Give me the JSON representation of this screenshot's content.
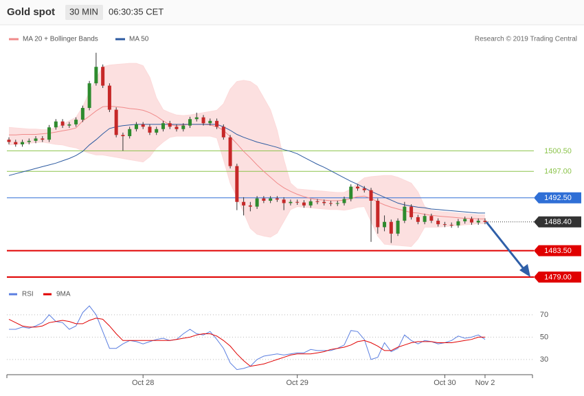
{
  "header": {
    "title": "Gold spot",
    "interval": "30 MIN",
    "time": "06:30:35 CET"
  },
  "source": "Research © 2019 Trading Central",
  "chart_data": [
    {
      "type": "candlestick",
      "categories": [
        null,
        null,
        null,
        null,
        null,
        null,
        null,
        null,
        null,
        null,
        null,
        null,
        null,
        null,
        null,
        null,
        null,
        null,
        null,
        null,
        "Oct 28",
        null,
        null,
        null,
        null,
        null,
        null,
        null,
        null,
        null,
        null,
        null,
        null,
        null,
        null,
        null,
        null,
        null,
        null,
        null,
        null,
        null,
        null,
        "Oct 29",
        null,
        null,
        null,
        null,
        null,
        null,
        null,
        null,
        null,
        null,
        null,
        null,
        null,
        null,
        null,
        null,
        null,
        null,
        null,
        null,
        null,
        "Oct 30",
        null,
        null,
        null,
        null,
        null,
        "Nov 2"
      ],
      "open": [
        1502.4,
        1502.0,
        1501.6,
        1502.0,
        1502.2,
        1502.6,
        1502.4,
        1504.5,
        1505.5,
        1504.8,
        1505.0,
        1505.8,
        1507.8,
        1512.0,
        1514.8,
        1511.6,
        1507.5,
        1503.2,
        1503.0,
        1504.2,
        1505.0,
        1504.6,
        1503.6,
        1504.2,
        1505.2,
        1504.6,
        1504.2,
        1504.8,
        1505.9,
        1506.2,
        1505.2,
        1505.6,
        1504.6,
        1502.8,
        1497.9,
        1491.8,
        1491.2,
        1491.0,
        1492.4,
        1492.0,
        1492.4,
        1492.2,
        1491.6,
        1491.8,
        1491.7,
        1491.2,
        1491.9,
        1491.8,
        1491.6,
        1491.5,
        1491.6,
        1492.3,
        1494.4,
        1494.1,
        1493.8,
        1492.0,
        1487.5,
        1488.4,
        1486.4,
        1488.6,
        1491.0,
        1489.2,
        1488.4,
        1489.4,
        1488.6,
        1488.0,
        1487.9,
        1487.8,
        1488.5,
        1488.9,
        1488.3,
        1488.6
      ],
      "high": [
        1502.8,
        1502.4,
        1502.4,
        1502.6,
        1503.0,
        1503.0,
        1504.9,
        1505.9,
        1505.9,
        1505.4,
        1506.2,
        1508.2,
        1512.4,
        1517.2,
        1515.2,
        1512.0,
        1507.9,
        1503.6,
        1504.6,
        1505.4,
        1505.4,
        1505.0,
        1504.6,
        1505.6,
        1505.6,
        1505.0,
        1505.2,
        1506.3,
        1507.0,
        1506.6,
        1506.0,
        1506.0,
        1505.0,
        1503.2,
        1498.3,
        1492.6,
        1491.8,
        1492.8,
        1492.8,
        1492.8,
        1492.8,
        1492.6,
        1492.2,
        1492.2,
        1492.1,
        1492.3,
        1492.3,
        1492.2,
        1492.0,
        1492.0,
        1492.7,
        1494.8,
        1494.8,
        1494.5,
        1494.2,
        1492.4,
        1489.5,
        1488.8,
        1489.0,
        1491.8,
        1491.4,
        1489.6,
        1489.8,
        1489.8,
        1489.0,
        1488.4,
        1488.3,
        1488.9,
        1489.3,
        1489.3,
        1489.0,
        1489.0
      ],
      "low": [
        1501.6,
        1501.2,
        1501.2,
        1501.6,
        1501.8,
        1502.0,
        1502.0,
        1504.1,
        1504.4,
        1504.4,
        1504.6,
        1505.4,
        1507.4,
        1511.6,
        1511.2,
        1507.1,
        1502.8,
        1500.5,
        1502.6,
        1503.8,
        1504.2,
        1503.2,
        1503.2,
        1503.8,
        1504.2,
        1503.8,
        1503.8,
        1504.4,
        1505.5,
        1504.8,
        1504.8,
        1504.2,
        1502.4,
        1497.5,
        1490.4,
        1489.5,
        1490.2,
        1490.6,
        1491.6,
        1491.6,
        1491.8,
        1490.4,
        1491.2,
        1491.3,
        1490.8,
        1490.8,
        1491.4,
        1491.2,
        1491.1,
        1491.1,
        1491.2,
        1491.9,
        1493.7,
        1493.4,
        1485.0,
        1486.4,
        1486.8,
        1484.8,
        1486.0,
        1488.2,
        1488.8,
        1488.0,
        1488.0,
        1488.2,
        1487.6,
        1487.5,
        1487.4,
        1487.4,
        1488.1,
        1487.9,
        1487.9,
        1488.0
      ],
      "close": [
        1502.0,
        1501.6,
        1502.0,
        1502.2,
        1502.6,
        1502.4,
        1504.5,
        1505.5,
        1504.8,
        1505.0,
        1505.8,
        1507.8,
        1512.0,
        1514.8,
        1511.6,
        1507.5,
        1503.2,
        1503.0,
        1504.2,
        1505.0,
        1504.6,
        1503.6,
        1504.2,
        1505.2,
        1504.6,
        1504.2,
        1504.8,
        1505.9,
        1506.2,
        1505.2,
        1505.6,
        1504.6,
        1502.8,
        1497.9,
        1491.8,
        1491.2,
        1491.0,
        1492.4,
        1492.0,
        1492.4,
        1492.2,
        1491.6,
        1491.8,
        1491.7,
        1491.2,
        1491.9,
        1491.8,
        1491.6,
        1491.5,
        1491.6,
        1492.3,
        1494.4,
        1494.1,
        1493.8,
        1492.0,
        1487.5,
        1488.4,
        1486.4,
        1488.6,
        1491.0,
        1489.2,
        1488.4,
        1489.4,
        1488.6,
        1488.0,
        1487.9,
        1487.8,
        1488.5,
        1488.9,
        1488.3,
        1488.6,
        1488.4
      ],
      "up_color": "#2e8b2e",
      "down_color": "#c62828",
      "series": [
        {
          "name": "MA 20 + Bollinger Bands",
          "color": "#f08a8a",
          "values": [
            1503.2,
            1503.2,
            1503.3,
            1503.3,
            1503.3,
            1503.4,
            1503.5,
            1503.7,
            1503.9,
            1504.1,
            1504.4,
            1505.6,
            1506.4,
            1507.3,
            1508.0,
            1508.1,
            1508.0,
            1507.9,
            1507.7,
            1507.6,
            1507.4,
            1507.0,
            1506.4,
            1505.6,
            1504.9,
            1504.8,
            1504.9,
            1505.0,
            1505.0,
            1505.0,
            1504.9,
            1504.6,
            1504.0,
            1502.9,
            1501.7,
            1500.4,
            1499.3,
            1498.1,
            1497.0,
            1496.0,
            1495.0,
            1494.2,
            1493.6,
            1493.1,
            1492.7,
            1492.4,
            1492.2,
            1492.1,
            1492.0,
            1492.0,
            1492.1,
            1492.4,
            1492.7,
            1492.8,
            1492.4,
            1491.8,
            1491.3,
            1490.9,
            1490.6,
            1490.3,
            1490.0,
            1489.9,
            1489.7,
            1489.5,
            1489.4,
            1489.3,
            1489.2,
            1489.1,
            1489.0,
            1489.0,
            1488.9,
            1488.9
          ],
          "upper": [
            1504.5,
            1504.4,
            1504.3,
            1504.2,
            1504.2,
            1504.1,
            1504.1,
            1504.5,
            1505.0,
            1505.6,
            1506.2,
            1508.0,
            1510.5,
            1512.8,
            1514.8,
            1515.1,
            1515.2,
            1515.3,
            1515.4,
            1515.4,
            1515.0,
            1513.0,
            1509.5,
            1507.5,
            1507.0,
            1506.6,
            1506.5,
            1506.6,
            1506.8,
            1507.0,
            1507.2,
            1507.4,
            1508.5,
            1511.0,
            1512.3,
            1512.5,
            1512.3,
            1511.5,
            1509.5,
            1507.5,
            1504.0,
            1499.0,
            1495.0,
            1494.0,
            1493.9,
            1493.8,
            1493.7,
            1493.6,
            1493.5,
            1493.4,
            1493.4,
            1494.0,
            1495.0,
            1495.9,
            1496.1,
            1496.2,
            1496.3,
            1496.3,
            1496.0,
            1495.5,
            1495.0,
            1493.5,
            1491.0,
            1490.4,
            1490.2,
            1490.1,
            1490.0,
            1489.9,
            1489.8,
            1489.7,
            1489.6,
            1489.6
          ],
          "lower": [
            1501.5,
            1501.6,
            1501.7,
            1501.8,
            1501.9,
            1502.0,
            1501.8,
            1501.6,
            1501.5,
            1501.2,
            1501.0,
            1500.5,
            1500.1,
            1499.8,
            1499.8,
            1499.6,
            1499.4,
            1499.2,
            1499.0,
            1498.8,
            1498.6,
            1499.5,
            1501.0,
            1502.0,
            1502.8,
            1503.0,
            1503.0,
            1503.0,
            1503.0,
            1503.0,
            1503.0,
            1502.7,
            1499.0,
            1495.0,
            1492.6,
            1490.0,
            1487.3,
            1486.3,
            1486.0,
            1485.8,
            1486.5,
            1488.5,
            1490.5,
            1491.0,
            1490.9,
            1490.8,
            1490.7,
            1490.6,
            1490.5,
            1490.5,
            1490.4,
            1490.6,
            1490.9,
            1491.0,
            1488.5,
            1486.0,
            1484.6,
            1484.5,
            1484.4,
            1484.3,
            1484.2,
            1485.5,
            1487.5,
            1487.5,
            1487.5,
            1487.6,
            1487.7,
            1487.8,
            1487.9,
            1488.0,
            1488.1,
            1488.1
          ],
          "band_color": "#fcdada"
        },
        {
          "name": "MA 50",
          "color": "#2c5aa0",
          "values": [
            1496.3,
            1496.6,
            1496.9,
            1497.2,
            1497.5,
            1497.8,
            1498.1,
            1498.4,
            1498.8,
            1499.2,
            1499.7,
            1500.4,
            1501.5,
            1502.4,
            1503.4,
            1504.3,
            1504.6,
            1504.8,
            1504.9,
            1505.0,
            1505.0,
            1505.0,
            1505.0,
            1505.0,
            1505.0,
            1505.0,
            1505.0,
            1505.0,
            1505.0,
            1505.0,
            1505.0,
            1505.0,
            1504.6,
            1504.0,
            1503.3,
            1502.8,
            1502.4,
            1502.0,
            1501.7,
            1501.4,
            1501.1,
            1500.7,
            1500.4,
            1500.0,
            1499.4,
            1498.8,
            1498.2,
            1497.7,
            1497.1,
            1496.5,
            1495.9,
            1495.3,
            1494.8,
            1494.2,
            1493.6,
            1493.1,
            1492.6,
            1492.1,
            1491.6,
            1491.3,
            1491.1,
            1490.9,
            1490.8,
            1490.6,
            1490.5,
            1490.4,
            1490.3,
            1490.2,
            1490.1,
            1490.0,
            1489.9,
            1489.9
          ]
        }
      ],
      "ylim": [
        1477.6,
        1521.5
      ],
      "levels": [
        {
          "value": 1500.5,
          "label": "1500.50",
          "color": "#8bc34a",
          "boxed": false,
          "bold": false,
          "dotted": false
        },
        {
          "value": 1497.0,
          "label": "1497.00",
          "color": "#8bc34a",
          "boxed": false,
          "bold": false,
          "dotted": false
        },
        {
          "value": 1492.5,
          "label": "1492.50",
          "color": "#2f6fd6",
          "boxed": true,
          "bold": false,
          "dotted": false
        },
        {
          "value": 1488.4,
          "label": "1488.40",
          "color": "#333333",
          "boxed": true,
          "bold": false,
          "dotted": true
        },
        {
          "value": 1483.5,
          "label": "1483.50",
          "color": "#e00000",
          "boxed": true,
          "bold": true,
          "dotted": false
        },
        {
          "value": 1479.0,
          "label": "1479.00",
          "color": "#e00000",
          "boxed": true,
          "bold": true,
          "dotted": false
        }
      ]
    },
    {
      "type": "line",
      "series": [
        {
          "name": "RSI",
          "color": "#5b7fe0",
          "values": [
            57,
            57,
            59,
            58,
            60,
            63,
            70,
            64,
            63,
            57,
            60,
            72,
            78,
            70,
            55,
            40,
            40,
            44,
            47,
            46,
            44,
            46,
            48,
            49,
            47,
            48,
            53,
            57,
            53,
            52,
            55,
            48,
            40,
            27,
            21,
            22,
            24,
            30,
            33,
            34,
            35,
            34,
            35,
            36,
            36,
            39,
            38,
            38,
            38,
            40,
            43,
            56,
            55,
            48,
            30,
            32,
            45,
            37,
            40,
            52,
            47,
            44,
            47,
            46,
            44,
            45,
            47,
            51,
            49,
            50,
            52,
            48
          ]
        },
        {
          "name": "9MA",
          "color": "#e00000",
          "values": [
            66,
            63,
            60,
            59,
            59,
            60,
            63,
            64,
            65,
            64,
            62,
            62,
            65,
            67,
            66,
            60,
            53,
            47,
            47,
            47,
            47,
            47,
            47,
            47,
            47,
            48,
            49,
            50,
            52,
            53,
            53,
            51,
            47,
            42,
            35,
            29,
            24,
            25,
            26,
            28,
            30,
            32,
            34,
            35,
            35,
            35,
            36,
            37,
            39,
            40,
            41,
            43,
            46,
            47,
            45,
            42,
            38,
            38,
            41,
            43,
            45,
            46,
            46,
            46,
            45,
            45,
            45,
            46,
            47,
            48,
            50,
            50
          ]
        }
      ],
      "ylim": [
        19.5,
        81
      ],
      "yticks": [
        70,
        50,
        30
      ],
      "grid": true
    }
  ]
}
